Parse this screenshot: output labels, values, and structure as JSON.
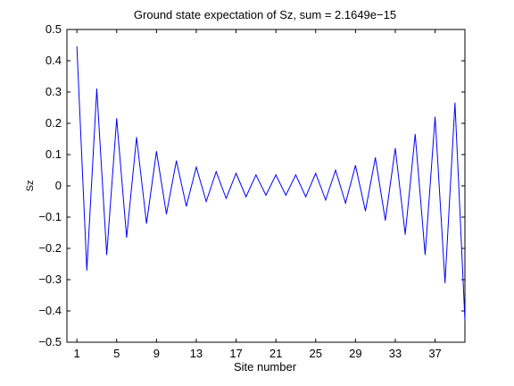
{
  "chart_data": {
    "type": "line",
    "title": "Ground state expectation of Sz, sum = 2.1649e−15",
    "xlabel": "Site number",
    "ylabel": "Sz",
    "xlim": [
      0,
      40
    ],
    "ylim": [
      -0.5,
      0.5
    ],
    "xticks": [
      1,
      5,
      9,
      13,
      17,
      21,
      25,
      29,
      33,
      37
    ],
    "yticks": [
      -0.5,
      -0.4,
      -0.3,
      -0.2,
      -0.1,
      0,
      0.1,
      0.2,
      0.3,
      0.4,
      0.5
    ],
    "grid": false,
    "line_color": "#0000ff",
    "series": [
      {
        "x": [
          1,
          2,
          3,
          4,
          5,
          6,
          7,
          8,
          9,
          10,
          11,
          12,
          13,
          14,
          15,
          16,
          17,
          18,
          19,
          20,
          21,
          22,
          23,
          24,
          25,
          26,
          27,
          28,
          29,
          30,
          31,
          32,
          33,
          34,
          35,
          36,
          37,
          38,
          39,
          40
        ],
        "values": [
          0.445,
          -0.27,
          0.31,
          -0.22,
          0.215,
          -0.165,
          0.155,
          -0.12,
          0.11,
          -0.09,
          0.08,
          -0.065,
          0.06,
          -0.05,
          0.045,
          -0.04,
          0.04,
          -0.035,
          0.035,
          -0.03,
          0.035,
          -0.03,
          0.035,
          -0.035,
          0.04,
          -0.045,
          0.05,
          -0.055,
          0.065,
          -0.08,
          0.09,
          -0.11,
          0.12,
          -0.155,
          0.165,
          -0.22,
          0.22,
          -0.31,
          0.265,
          -0.43
        ]
      }
    ]
  }
}
